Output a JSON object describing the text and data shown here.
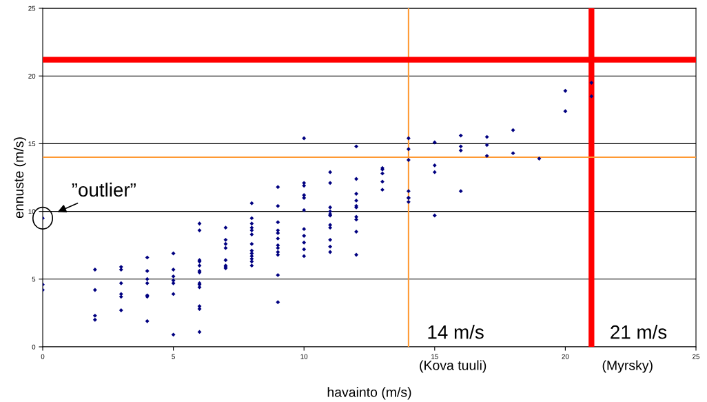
{
  "chart_data": {
    "type": "scatter",
    "xlabel": "havainto (m/s)",
    "ylabel": "ennuste (m/s)",
    "xlim": [
      0,
      25
    ],
    "ylim": [
      0,
      25
    ],
    "xticks": [
      0,
      5,
      10,
      15,
      20,
      25
    ],
    "yticks": [
      0,
      5,
      10,
      15,
      20,
      25
    ],
    "grid": "y",
    "marker": "diamond",
    "series": [
      {
        "color": "#000080",
        "x": [
          0,
          0,
          0,
          2,
          2,
          2,
          2,
          3,
          3,
          3,
          3,
          3,
          3,
          4,
          4,
          4,
          4,
          4,
          4,
          4,
          5,
          5,
          5,
          5,
          5,
          5,
          5,
          6,
          6,
          6,
          6,
          6,
          6,
          6,
          6,
          6,
          6,
          6,
          6,
          6,
          7,
          7,
          7,
          7,
          7,
          7,
          7,
          7,
          8,
          8,
          8,
          8,
          8,
          8,
          8,
          8,
          8,
          8,
          8,
          8,
          8,
          9,
          9,
          9,
          9,
          9,
          9,
          9,
          9,
          9,
          9,
          9,
          9,
          10,
          10,
          10,
          10,
          10,
          10,
          10,
          10,
          10,
          10,
          10,
          11,
          11,
          11,
          11,
          11,
          11,
          11,
          11,
          11,
          11,
          11,
          12,
          12,
          12,
          12,
          12,
          12,
          12,
          12,
          12,
          12,
          13,
          13,
          13,
          13,
          13,
          14,
          14,
          14,
          14,
          14,
          14,
          14,
          15,
          15,
          15,
          15,
          16,
          16,
          16,
          16,
          17,
          17,
          17,
          18,
          18,
          19,
          20,
          20,
          21,
          21
        ],
        "values": [
          9.5,
          4.6,
          4.2,
          5.7,
          4.2,
          2.3,
          2.0,
          5.9,
          5.7,
          4.7,
          3.9,
          3.7,
          2.7,
          6.6,
          5.6,
          5.0,
          4.7,
          3.8,
          3.7,
          1.9,
          6.9,
          5.7,
          5.2,
          4.9,
          4.7,
          3.9,
          0.9,
          9.1,
          8.6,
          6.4,
          6.3,
          6.0,
          5.6,
          5.5,
          4.7,
          4.6,
          4.4,
          3.0,
          2.8,
          1.1,
          8.8,
          7.9,
          7.6,
          7.3,
          6.4,
          6.0,
          5.9,
          5.8,
          10.6,
          9.5,
          9.1,
          8.8,
          8.6,
          8.3,
          7.6,
          7.1,
          6.9,
          6.7,
          6.5,
          6.3,
          6.0,
          11.8,
          10.4,
          9.2,
          8.6,
          8.4,
          8.0,
          7.5,
          7.3,
          7.0,
          6.8,
          5.3,
          3.3,
          15.4,
          12.1,
          11.9,
          11.2,
          11.0,
          10.1,
          8.7,
          8.2,
          7.7,
          7.2,
          6.7,
          12.9,
          12.1,
          10.3,
          10.0,
          9.8,
          9.7,
          9.0,
          8.8,
          7.9,
          7.4,
          7.0,
          14.8,
          12.4,
          11.3,
          10.8,
          10.4,
          10.3,
          9.6,
          9.4,
          8.5,
          6.8,
          13.2,
          13.1,
          12.8,
          12.2,
          11.6,
          15.4,
          14.6,
          13.8,
          11.5,
          11.0,
          11.0,
          10.7,
          15.1,
          13.4,
          12.9,
          9.7,
          15.6,
          14.8,
          14.5,
          11.5,
          15.5,
          14.9,
          14.1,
          16.0,
          14.3,
          13.9,
          18.9,
          17.4,
          19.5,
          18.5
        ]
      }
    ],
    "ref_lines": [
      {
        "axis": "x",
        "value": 14,
        "label": "14 m/s",
        "color": "#ff9933"
      },
      {
        "axis": "x",
        "value": 21,
        "label": "21 m/s",
        "color": "#ff0000"
      },
      {
        "axis": "y",
        "value": 14,
        "color": "#ff9933"
      },
      {
        "axis": "y",
        "value": 21.2,
        "color": "#ff0000"
      }
    ],
    "annotations": [
      "(Kova tuuli)",
      "(Myrsky)",
      {
        "text": "”outlier”",
        "x": 0,
        "y": 9.5
      }
    ]
  }
}
